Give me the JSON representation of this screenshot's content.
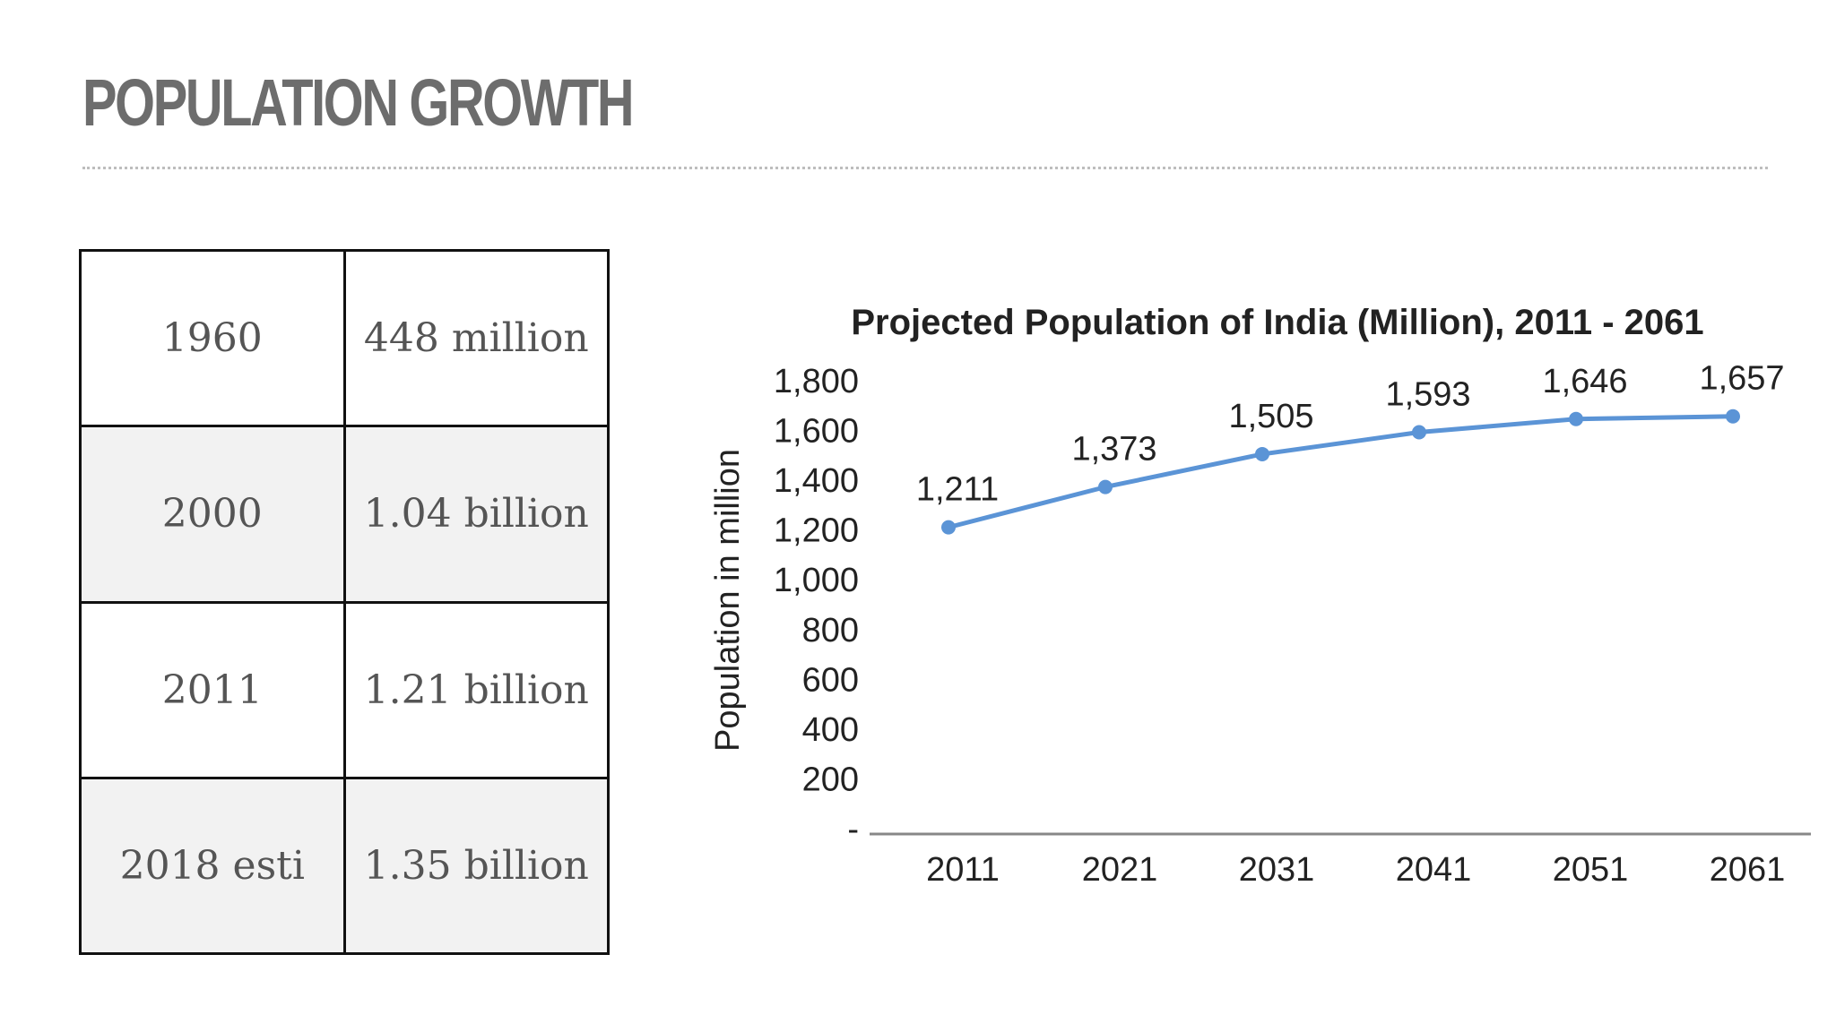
{
  "slide": {
    "title": "POPULATION GROWTH"
  },
  "table": {
    "rows": [
      {
        "year": "1960",
        "population": "448 million"
      },
      {
        "year": "2000",
        "population": "1.04 billion"
      },
      {
        "year": "2011",
        "population": "1.21 billion"
      },
      {
        "year": "2018 esti",
        "population": "1.35 billion"
      }
    ]
  },
  "chart_data": {
    "type": "line",
    "title": "Projected Population of India (Million), 2011 - 2061",
    "xlabel": "",
    "ylabel": "Population in million",
    "categories": [
      "2011",
      "2021",
      "2031",
      "2041",
      "2051",
      "2061"
    ],
    "series": [
      {
        "values": [
          1211,
          1373,
          1505,
          1593,
          1646,
          1657
        ],
        "labels": [
          "1,211",
          "1,373",
          "1,505",
          "1,593",
          "1,646",
          "1,657"
        ],
        "color": "#5b94d6"
      }
    ],
    "yticks": [
      0,
      200,
      400,
      600,
      800,
      1000,
      1200,
      1400,
      1600,
      1800
    ],
    "ytick_labels": [
      "-",
      "200",
      "400",
      "600",
      "800",
      "1,000",
      "1,200",
      "1,400",
      "1,600",
      "1,800"
    ],
    "ylim": [
      0,
      1800
    ],
    "grid": false,
    "legend": "none"
  }
}
